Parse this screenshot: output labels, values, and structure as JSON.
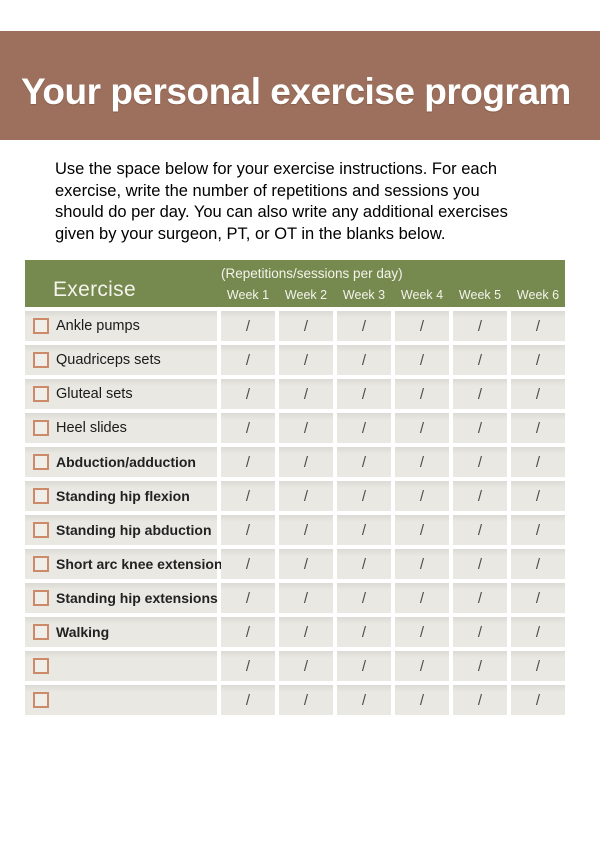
{
  "banner": {
    "title": "Your personal exercise program"
  },
  "intro": {
    "lines": [
      "Use the space below for your exercise instructions. For each",
      "exercise, write the number of repetitions and sessions you",
      "should do per day. You can also write any additional exercises",
      "given by your surgeon, PT, or OT in the blanks below."
    ]
  },
  "table": {
    "exercise_header": "Exercise",
    "reps_caption": "(Repetitions/sessions per day)",
    "weeks": [
      "Week 1",
      "Week 2",
      "Week 3",
      "Week 4",
      "Week 5",
      "Week 6"
    ],
    "slash": "/",
    "rows": [
      {
        "label": "Ankle pumps",
        "bold": false
      },
      {
        "label": "Quadriceps sets",
        "bold": false
      },
      {
        "label": "Gluteal sets",
        "bold": false
      },
      {
        "label": "Heel slides",
        "bold": false
      },
      {
        "label": "Abduction/adduction",
        "bold": true
      },
      {
        "label": "Standing hip flexion",
        "bold": true
      },
      {
        "label": "Standing hip abduction",
        "bold": true
      },
      {
        "label": "Short arc knee extensions",
        "bold": true
      },
      {
        "label": "Standing hip extensions",
        "bold": true
      },
      {
        "label": "Walking",
        "bold": true
      },
      {
        "label": "",
        "bold": false
      },
      {
        "label": "",
        "bold": false
      }
    ]
  },
  "colors": {
    "banner_bg": "#9c705c",
    "table_header_bg": "#76894e",
    "row_bg": "#e9e8e2",
    "checkbox_border": "#cd8a6a",
    "slash_text": "#4e4e4e"
  }
}
